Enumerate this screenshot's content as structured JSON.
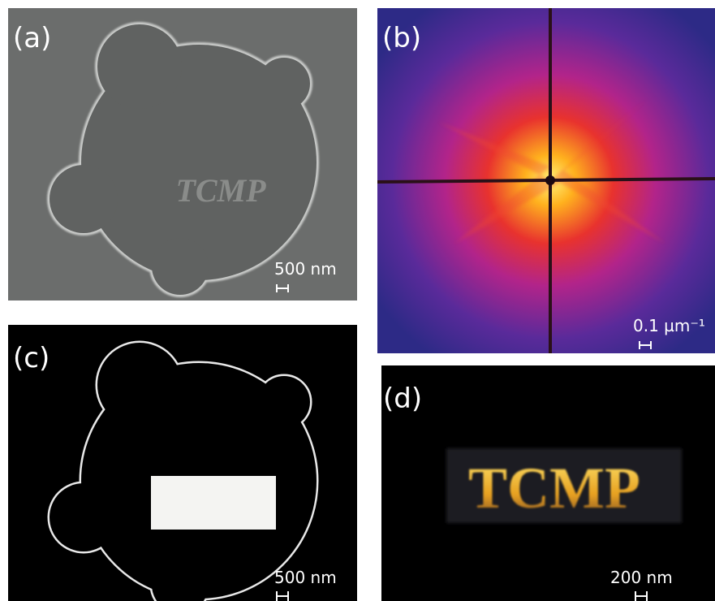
{
  "panels": [
    {
      "label": "(a)",
      "text": "TCMP",
      "scale_bar": "500 nm"
    },
    {
      "label": "(b)",
      "scale_bar": "0.1 µm⁻¹"
    },
    {
      "label": "(c)",
      "scale_bar": "500 nm"
    },
    {
      "label": "(d)",
      "text": "TCMP",
      "scale_bar": "200 nm"
    }
  ]
}
